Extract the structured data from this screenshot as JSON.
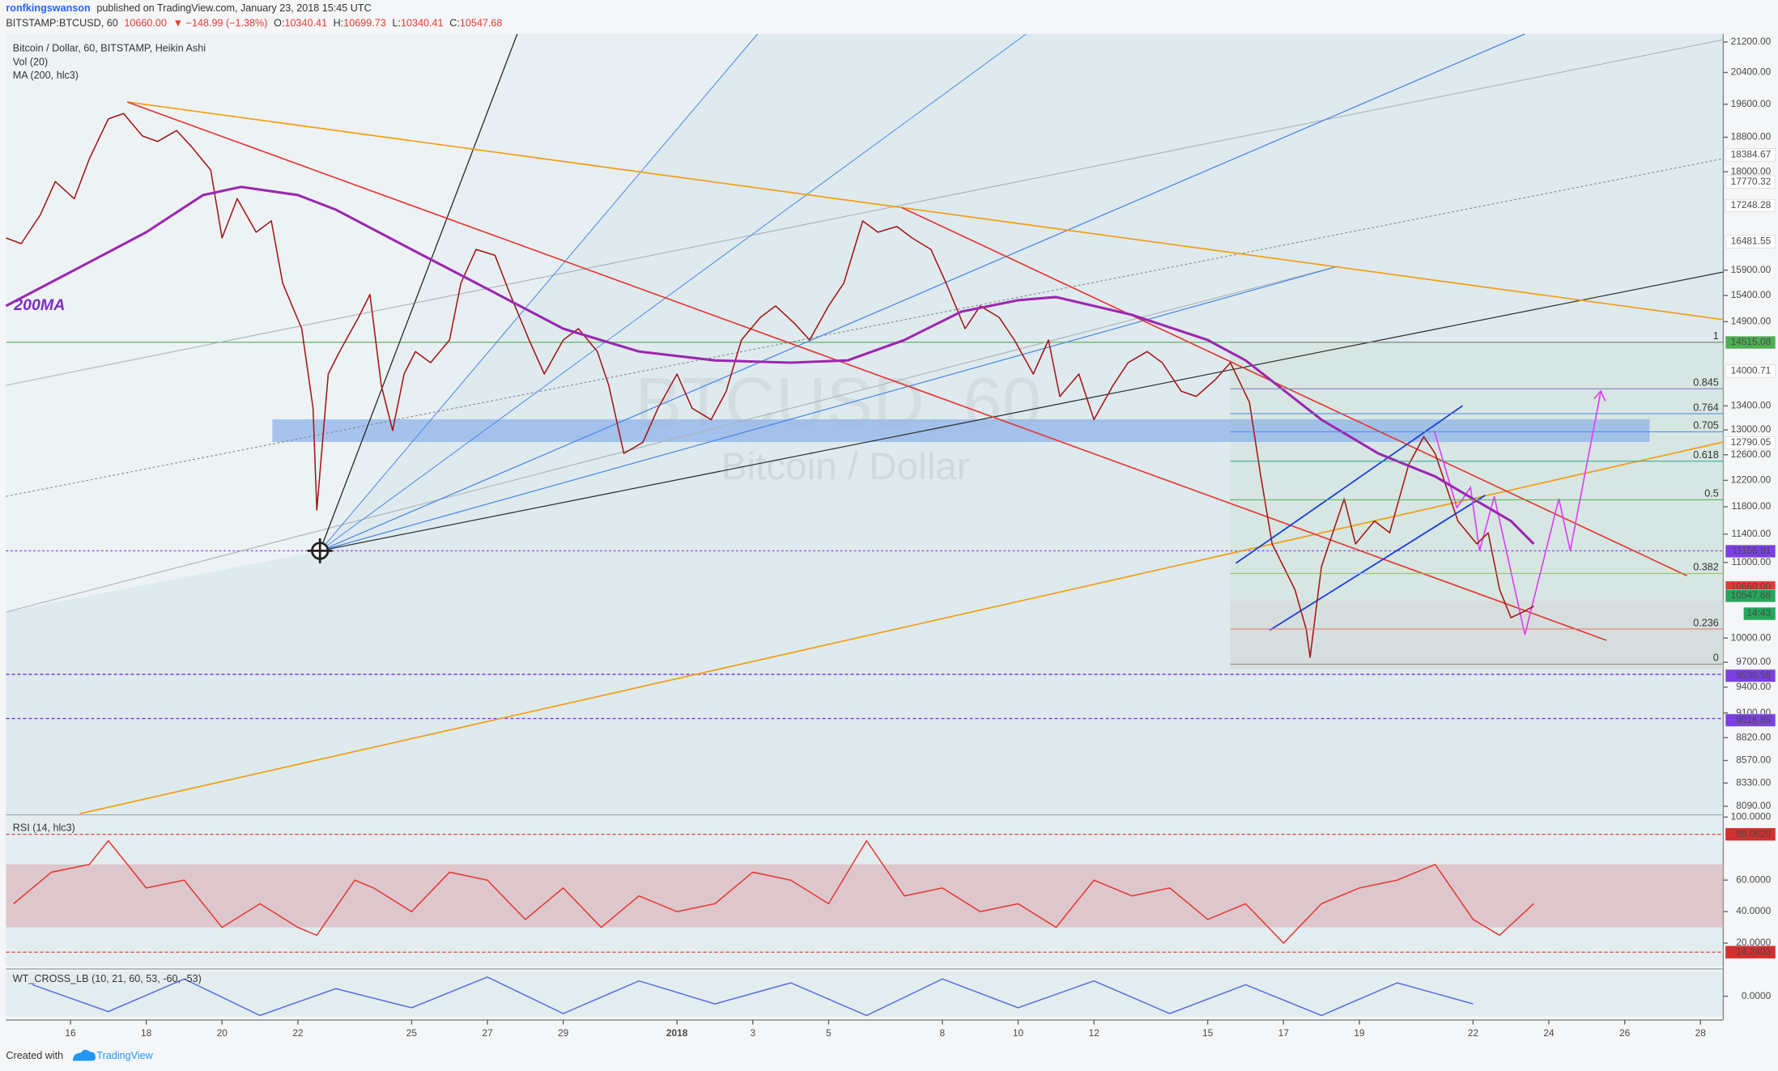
{
  "header": {
    "author": "ronfkingswanson",
    "published": "published on TradingView.com, January 23, 2018 15:45 UTC",
    "symbol": "BITSTAMP:BTCUSD, 60",
    "last": "10660.00",
    "change": "▼ −148.99 (−1.38%)",
    "ohlc": [
      {
        "key": "O:",
        "value": "10340.41"
      },
      {
        "key": "H:",
        "value": "10699.73"
      },
      {
        "key": "L:",
        "value": "10340.41"
      },
      {
        "key": "C:",
        "value": "10547.68"
      }
    ]
  },
  "chart_data": [
    {
      "type": "line",
      "title": "Bitcoin / Dollar, 60, BITSTAMP, Heikin Ashi",
      "indicators": [
        "Vol (20)"
      ],
      "watermark": [
        "BTCUSD, 60",
        "Bitcoin / Dollar"
      ],
      "annotation": "200MA",
      "log": true,
      "xlim": [
        -1.7,
        43.6
      ],
      "ylim": [
        8014,
        21413
      ],
      "xticks": [
        {
          "value": 0,
          "label": "16"
        },
        {
          "value": 2,
          "label": "18"
        },
        {
          "value": 4,
          "label": "20"
        },
        {
          "value": 6,
          "label": "22"
        },
        {
          "value": 9,
          "label": "25"
        },
        {
          "value": 11,
          "label": "27"
        },
        {
          "value": 13,
          "label": "29"
        },
        {
          "value": 16,
          "label": "2018"
        },
        {
          "value": 18,
          "label": "3"
        },
        {
          "value": 20,
          "label": "5"
        },
        {
          "value": 23,
          "label": "8"
        },
        {
          "value": 25,
          "label": "10"
        },
        {
          "value": 27,
          "label": "12"
        },
        {
          "value": 30,
          "label": "15"
        },
        {
          "value": 32,
          "label": "17"
        },
        {
          "value": 34,
          "label": "19"
        },
        {
          "value": 37,
          "label": "22"
        },
        {
          "value": 39,
          "label": "24"
        },
        {
          "value": 41,
          "label": "26"
        },
        {
          "value": 43,
          "label": "28"
        }
      ],
      "yticks": [
        {
          "value": 21200,
          "label": "21200.00"
        },
        {
          "value": 20400,
          "label": "20400.00"
        },
        {
          "value": 19600,
          "label": "19600.00"
        },
        {
          "value": 18800,
          "label": "18800.00"
        },
        {
          "value": 18000,
          "label": "18000.00"
        },
        {
          "value": 15900,
          "label": "15900.00"
        },
        {
          "value": 15400,
          "label": "15400.00"
        },
        {
          "value": 14900,
          "label": "14900.00"
        },
        {
          "value": 13400,
          "label": "13400.00"
        },
        {
          "value": 13000,
          "label": "13000.00"
        },
        {
          "value": 12600,
          "label": "12600.00"
        },
        {
          "value": 12200,
          "label": "12200.00"
        },
        {
          "value": 11800,
          "label": "11800.00"
        },
        {
          "value": 11400,
          "label": "11400.00"
        },
        {
          "value": 11000,
          "label": "11000.00"
        },
        {
          "value": 10000,
          "label": "10000.00"
        },
        {
          "value": 9700,
          "label": "9700.00"
        },
        {
          "value": 9400,
          "label": "9400.00"
        },
        {
          "value": 9100,
          "label": "9100.00"
        },
        {
          "value": 8820,
          "label": "8820.00"
        },
        {
          "value": 8570,
          "label": "8570.00"
        },
        {
          "value": 8330,
          "label": "8330.00"
        },
        {
          "value": 8090,
          "label": "8090.00"
        }
      ],
      "price_labels": [
        {
          "value": 18384.67,
          "label": "18384.67",
          "color": "#ffffff",
          "text_color": "#222222"
        },
        {
          "value": 17770.32,
          "label": "17770.32",
          "color": "#ffffff",
          "text_color": "#222222"
        },
        {
          "value": 17248.28,
          "label": "17248.28",
          "color": "#ffffff",
          "text_color": "#222222"
        },
        {
          "value": 16481.55,
          "label": "16481.55",
          "color": "#ffffff",
          "text_color": "#222222"
        },
        {
          "value": 14515.08,
          "label": "14515.08",
          "color": "#4caf50",
          "text_color": "#ffffff"
        },
        {
          "value": 14000.71,
          "label": "14000.71",
          "color": "#ffffff",
          "text_color": "#222222"
        },
        {
          "value": 12790.05,
          "label": "12790.05",
          "color": "#ffffff",
          "text_color": "#222222"
        },
        {
          "value": 11156.91,
          "label": "11156.91",
          "color": "#7b3fe4",
          "text_color": "#ffffff"
        },
        {
          "value": 10660.0,
          "label": "10660.00",
          "color": "#e53935",
          "text_color": "#ffffff"
        },
        {
          "value": 10547.68,
          "label": "10547.68",
          "color": "#26a65b",
          "text_color": "#ffffff"
        },
        {
          "value": 9536.56,
          "label": "9536.56",
          "color": "#7b3fe4",
          "text_color": "#ffffff"
        },
        {
          "value": 9016.85,
          "label": "9016.85",
          "color": "#7b3fe4",
          "text_color": "#ffffff"
        }
      ],
      "countdown": "14:43",
      "fib_levels": [
        1,
        0.845,
        0.764,
        0.705,
        0.618,
        0.5,
        0.382,
        0.236,
        0
      ],
      "series": [
        {
          "name": "Bitcoin / Dollar, 60, BITSTAMP, Heikin Ashi",
          "color": "#a31515",
          "x": [
            -1.7,
            -1.3,
            -0.8,
            -0.4,
            0.1,
            0.5,
            1.0,
            1.4,
            1.9,
            2.3,
            2.8,
            3.2,
            3.7,
            4.0,
            4.4,
            4.9,
            5.3,
            5.6,
            6.1,
            6.4,
            6.5,
            6.8,
            7.1,
            7.6,
            7.9,
            8.2,
            8.5,
            8.8,
            9.1,
            9.5,
            10.0,
            10.3,
            10.7,
            11.2,
            11.6,
            12.1,
            12.5,
            13.0,
            13.4,
            13.9,
            14.2,
            14.6,
            15.1,
            15.5,
            16.0,
            16.4,
            16.9,
            17.3,
            17.7,
            18.2,
            18.6,
            19.1,
            19.5,
            20.0,
            20.4,
            20.9,
            21.3,
            21.8,
            22.2,
            22.7,
            23.1,
            23.6,
            24.0,
            24.5,
            24.9,
            25.4,
            25.8,
            26.1,
            26.6,
            27.0,
            27.5,
            27.9,
            28.4,
            28.8,
            29.3,
            29.7,
            30.2,
            30.6,
            31.1,
            31.4,
            31.7,
            32.0,
            32.3,
            32.6,
            32.7,
            33.0,
            33.3,
            33.6,
            33.9,
            34.4,
            34.8,
            35.3,
            35.7,
            36.0,
            36.3,
            36.6,
            37.1,
            37.4,
            37.7,
            38.0,
            38.3,
            38.6
          ],
          "values": [
            16560,
            16440,
            17040,
            17780,
            17400,
            18300,
            19240,
            19370,
            18830,
            18700,
            18960,
            18570,
            18040,
            16560,
            17400,
            16680,
            16920,
            15640,
            14770,
            13360,
            11750,
            13950,
            14350,
            14980,
            15420,
            13750,
            12990,
            13950,
            14350,
            14150,
            14560,
            15640,
            16320,
            16200,
            15420,
            14560,
            13950,
            14560,
            14770,
            14350,
            13750,
            12620,
            12800,
            13360,
            13950,
            13360,
            13170,
            13650,
            14560,
            14980,
            15200,
            14870,
            14560,
            15200,
            15640,
            16920,
            16680,
            16800,
            16560,
            16320,
            15640,
            14770,
            15200,
            14980,
            14560,
            13950,
            14560,
            13560,
            13950,
            13170,
            13750,
            14150,
            14350,
            14150,
            13650,
            13560,
            13850,
            14150,
            13460,
            12260,
            11260,
            10940,
            10630,
            10110,
            9760,
            10940,
            11420,
            11920,
            11260,
            11590,
            11420,
            12440,
            12890,
            12620,
            12090,
            11590,
            11260,
            11420,
            10630,
            10260,
            10330,
            10410
          ]
        },
        {
          "name": "MA (200, hlc3)",
          "color": "#9c27b0",
          "x": [
            -1.7,
            0,
            2,
            3.5,
            4.5,
            6,
            7,
            9,
            11,
            13,
            15,
            17,
            19,
            20.5,
            22,
            23.5,
            25,
            26,
            28,
            30,
            31,
            33,
            34.5,
            36,
            37,
            38,
            38.6
          ],
          "values": [
            15200,
            15860,
            16680,
            17480,
            17660,
            17480,
            17160,
            16320,
            15530,
            14770,
            14350,
            14190,
            14150,
            14190,
            14560,
            15090,
            15310,
            15370,
            15030,
            14560,
            14190,
            13170,
            12620,
            12260,
            11920,
            11590,
            11260
          ]
        }
      ]
    },
    {
      "type": "line",
      "title": "RSI (14, hlc3)",
      "xlim": [
        -1.7,
        43.6
      ],
      "ylim": [
        5,
        100.7
      ],
      "yticks": [
        {
          "value": 20,
          "label": "20.0000"
        },
        {
          "value": 40,
          "label": "40.0000"
        },
        {
          "value": 60,
          "label": "60.0000"
        },
        {
          "value": 100,
          "label": "100.0000"
        }
      ],
      "band": [
        30,
        70
      ],
      "levels": [
        {
          "value": 89.062,
          "label": "89.0620",
          "color": "#d32f2f"
        },
        {
          "value": 14.2403,
          "label": "14.2403",
          "color": "#d32f2f"
        }
      ],
      "series": [
        {
          "color": "#e53935",
          "x": [
            -1.5,
            -0.5,
            0.5,
            1,
            2,
            3,
            4,
            5,
            6,
            6.5,
            7.5,
            8,
            9,
            10,
            11,
            12,
            13,
            14,
            15,
            16,
            17,
            18,
            19,
            20,
            21,
            22,
            23,
            24,
            25,
            26,
            27,
            28,
            29,
            30,
            31,
            32,
            33,
            34,
            35,
            36,
            37,
            37.7,
            38.6
          ],
          "values": [
            45,
            65,
            70,
            85,
            55,
            60,
            30,
            45,
            30,
            25,
            60,
            55,
            40,
            65,
            60,
            35,
            55,
            30,
            50,
            40,
            45,
            65,
            60,
            45,
            85,
            50,
            55,
            40,
            45,
            30,
            60,
            50,
            55,
            35,
            45,
            20,
            45,
            55,
            60,
            70,
            35,
            25,
            45
          ]
        }
      ]
    },
    {
      "type": "line",
      "title": "WT_CROSS_LB (10, 21, 60, 53, -60, -53)",
      "xlim": [
        -1.7,
        43.6
      ],
      "ylim": [
        -53,
        65
      ],
      "yticks": [
        {
          "value": 0,
          "label": "0.0000"
        }
      ],
      "series": [
        {
          "color": "#5b6ee1",
          "x": [
            -1,
            1,
            3,
            5,
            7,
            9,
            11,
            13,
            15,
            17,
            19,
            21,
            23,
            25,
            27,
            29,
            31,
            33,
            35,
            37
          ],
          "values": [
            30,
            -40,
            45,
            -50,
            20,
            -30,
            50,
            -45,
            40,
            -20,
            35,
            -50,
            45,
            -30,
            40,
            -45,
            30,
            -50,
            35,
            -20
          ]
        }
      ]
    }
  ],
  "footer": {
    "created": "Created with",
    "brand": "TradingView"
  }
}
